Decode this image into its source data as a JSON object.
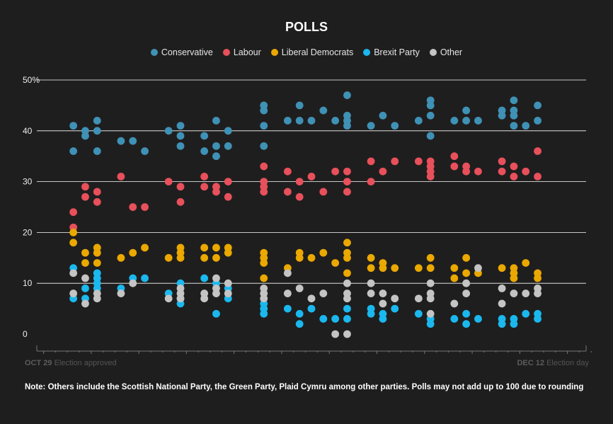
{
  "colors": {
    "conservative": "#3f91b5",
    "labour": "#e8505b",
    "libdem": "#eaa800",
    "brexit": "#1ab8ee",
    "other": "#c4c4c4",
    "grid": "#ffffff",
    "axis": "#777777"
  },
  "chart_data": {
    "type": "scatter",
    "title": "POLLS",
    "ylim": [
      0,
      50
    ],
    "yticks": [
      0,
      10,
      20,
      30,
      40,
      50
    ],
    "ytick_labels": [
      "0",
      "10",
      "20",
      "30",
      "40",
      "50%"
    ],
    "xrange_days": [
      0,
      44
    ],
    "xstart_label": {
      "date": "OCT 29",
      "text": "Election approved"
    },
    "xend_label": {
      "date": "DEC 12",
      "text": "Election day"
    },
    "series": [
      {
        "name": "Conservative",
        "key": "conservative",
        "points": [
          [
            2,
            41
          ],
          [
            2,
            36
          ],
          [
            3,
            40
          ],
          [
            3,
            39
          ],
          [
            4,
            42
          ],
          [
            4,
            40
          ],
          [
            4,
            36
          ],
          [
            6,
            38
          ],
          [
            7,
            38
          ],
          [
            8,
            36
          ],
          [
            10,
            40
          ],
          [
            11,
            41
          ],
          [
            11,
            39
          ],
          [
            11,
            37
          ],
          [
            13,
            39
          ],
          [
            13,
            36
          ],
          [
            14,
            42
          ],
          [
            14,
            37
          ],
          [
            14,
            35
          ],
          [
            15,
            40
          ],
          [
            15,
            37
          ],
          [
            18,
            45
          ],
          [
            18,
            44
          ],
          [
            18,
            41
          ],
          [
            18,
            37
          ],
          [
            20,
            42
          ],
          [
            21,
            45
          ],
          [
            21,
            42
          ],
          [
            22,
            42
          ],
          [
            23,
            44
          ],
          [
            24,
            42
          ],
          [
            25,
            47
          ],
          [
            25,
            43
          ],
          [
            25,
            42
          ],
          [
            25,
            41
          ],
          [
            27,
            41
          ],
          [
            28,
            43
          ],
          [
            29,
            41
          ],
          [
            31,
            42
          ],
          [
            32,
            46
          ],
          [
            32,
            45
          ],
          [
            32,
            43
          ],
          [
            32,
            39
          ],
          [
            34,
            42
          ],
          [
            35,
            44
          ],
          [
            35,
            42
          ],
          [
            36,
            42
          ],
          [
            38,
            44
          ],
          [
            38,
            43
          ],
          [
            39,
            46
          ],
          [
            39,
            44
          ],
          [
            39,
            43
          ],
          [
            39,
            41
          ],
          [
            40,
            41
          ],
          [
            41,
            45
          ],
          [
            41,
            42
          ]
        ]
      },
      {
        "name": "Labour",
        "key": "labour",
        "points": [
          [
            2,
            24
          ],
          [
            2,
            21
          ],
          [
            3,
            29
          ],
          [
            3,
            27
          ],
          [
            4,
            28
          ],
          [
            4,
            26
          ],
          [
            6,
            31
          ],
          [
            7,
            25
          ],
          [
            8,
            25
          ],
          [
            10,
            30
          ],
          [
            11,
            29
          ],
          [
            11,
            26
          ],
          [
            13,
            31
          ],
          [
            13,
            29
          ],
          [
            14,
            29
          ],
          [
            14,
            28
          ],
          [
            15,
            30
          ],
          [
            15,
            27
          ],
          [
            18,
            33
          ],
          [
            18,
            30
          ],
          [
            18,
            29
          ],
          [
            18,
            28
          ],
          [
            20,
            32
          ],
          [
            20,
            28
          ],
          [
            21,
            30
          ],
          [
            21,
            27
          ],
          [
            22,
            31
          ],
          [
            23,
            28
          ],
          [
            24,
            32
          ],
          [
            25,
            32
          ],
          [
            25,
            30
          ],
          [
            25,
            28
          ],
          [
            27,
            30
          ],
          [
            27,
            34
          ],
          [
            28,
            32
          ],
          [
            29,
            34
          ],
          [
            31,
            34
          ],
          [
            32,
            34
          ],
          [
            32,
            33
          ],
          [
            32,
            32
          ],
          [
            32,
            31
          ],
          [
            34,
            35
          ],
          [
            34,
            33
          ],
          [
            35,
            33
          ],
          [
            35,
            32
          ],
          [
            36,
            32
          ],
          [
            38,
            34
          ],
          [
            38,
            32
          ],
          [
            39,
            33
          ],
          [
            39,
            31
          ],
          [
            40,
            32
          ],
          [
            41,
            36
          ],
          [
            41,
            31
          ]
        ]
      },
      {
        "name": "Liberal Democrats",
        "key": "libdem",
        "points": [
          [
            2,
            20
          ],
          [
            2,
            18
          ],
          [
            3,
            16
          ],
          [
            3,
            14
          ],
          [
            4,
            17
          ],
          [
            4,
            16
          ],
          [
            4,
            14
          ],
          [
            6,
            15
          ],
          [
            7,
            16
          ],
          [
            8,
            17
          ],
          [
            10,
            15
          ],
          [
            11,
            17
          ],
          [
            11,
            16
          ],
          [
            11,
            15
          ],
          [
            13,
            17
          ],
          [
            13,
            15
          ],
          [
            14,
            17
          ],
          [
            14,
            15
          ],
          [
            15,
            17
          ],
          [
            15,
            16
          ],
          [
            18,
            16
          ],
          [
            18,
            15
          ],
          [
            18,
            14
          ],
          [
            18,
            11
          ],
          [
            20,
            13
          ],
          [
            21,
            16
          ],
          [
            21,
            15
          ],
          [
            22,
            15
          ],
          [
            23,
            16
          ],
          [
            24,
            14
          ],
          [
            25,
            18
          ],
          [
            25,
            16
          ],
          [
            25,
            15
          ],
          [
            25,
            12
          ],
          [
            27,
            15
          ],
          [
            27,
            13
          ],
          [
            28,
            14
          ],
          [
            28,
            13
          ],
          [
            29,
            13
          ],
          [
            31,
            13
          ],
          [
            32,
            15
          ],
          [
            32,
            13
          ],
          [
            34,
            13
          ],
          [
            34,
            11
          ],
          [
            35,
            15
          ],
          [
            35,
            12
          ],
          [
            36,
            12
          ],
          [
            38,
            13
          ],
          [
            39,
            13
          ],
          [
            39,
            12
          ],
          [
            39,
            11
          ],
          [
            40,
            14
          ],
          [
            41,
            12
          ],
          [
            41,
            11
          ]
        ]
      },
      {
        "name": "Brexit Party",
        "key": "brexit",
        "points": [
          [
            2,
            13
          ],
          [
            2,
            7
          ],
          [
            3,
            9
          ],
          [
            3,
            7
          ],
          [
            4,
            12
          ],
          [
            4,
            11
          ],
          [
            4,
            10
          ],
          [
            4,
            9
          ],
          [
            6,
            9
          ],
          [
            7,
            11
          ],
          [
            8,
            11
          ],
          [
            10,
            8
          ],
          [
            11,
            10
          ],
          [
            11,
            7
          ],
          [
            11,
            6
          ],
          [
            13,
            11
          ],
          [
            14,
            10
          ],
          [
            14,
            4
          ],
          [
            15,
            9
          ],
          [
            15,
            7
          ],
          [
            18,
            6
          ],
          [
            18,
            5
          ],
          [
            18,
            4
          ],
          [
            20,
            5
          ],
          [
            21,
            4
          ],
          [
            21,
            2
          ],
          [
            22,
            5
          ],
          [
            23,
            3
          ],
          [
            24,
            3
          ],
          [
            25,
            5
          ],
          [
            25,
            3
          ],
          [
            27,
            5
          ],
          [
            27,
            4
          ],
          [
            28,
            4
          ],
          [
            28,
            3
          ],
          [
            29,
            5
          ],
          [
            31,
            4
          ],
          [
            32,
            3
          ],
          [
            32,
            2
          ],
          [
            34,
            3
          ],
          [
            35,
            4
          ],
          [
            35,
            2
          ],
          [
            36,
            3
          ],
          [
            38,
            3
          ],
          [
            38,
            2
          ],
          [
            39,
            3
          ],
          [
            39,
            2
          ],
          [
            40,
            4
          ],
          [
            41,
            4
          ],
          [
            41,
            3
          ]
        ]
      },
      {
        "name": "Other",
        "key": "other",
        "points": [
          [
            2,
            12
          ],
          [
            2,
            8
          ],
          [
            3,
            11
          ],
          [
            3,
            6
          ],
          [
            4,
            8
          ],
          [
            4,
            7
          ],
          [
            6,
            8
          ],
          [
            7,
            10
          ],
          [
            10,
            7
          ],
          [
            11,
            9
          ],
          [
            11,
            8
          ],
          [
            11,
            7
          ],
          [
            13,
            8
          ],
          [
            13,
            7
          ],
          [
            14,
            11
          ],
          [
            14,
            9
          ],
          [
            14,
            8
          ],
          [
            15,
            10
          ],
          [
            15,
            8
          ],
          [
            18,
            9
          ],
          [
            18,
            8
          ],
          [
            18,
            7
          ],
          [
            20,
            12
          ],
          [
            20,
            8
          ],
          [
            21,
            9
          ],
          [
            22,
            7
          ],
          [
            23,
            8
          ],
          [
            24,
            0
          ],
          [
            25,
            10
          ],
          [
            25,
            8
          ],
          [
            25,
            7
          ],
          [
            25,
            0
          ],
          [
            27,
            10
          ],
          [
            27,
            8
          ],
          [
            28,
            8
          ],
          [
            28,
            6
          ],
          [
            29,
            7
          ],
          [
            31,
            7
          ],
          [
            32,
            10
          ],
          [
            32,
            8
          ],
          [
            32,
            7
          ],
          [
            32,
            4
          ],
          [
            34,
            6
          ],
          [
            35,
            10
          ],
          [
            35,
            8
          ],
          [
            36,
            13
          ],
          [
            38,
            9
          ],
          [
            38,
            6
          ],
          [
            39,
            8
          ],
          [
            40,
            8
          ],
          [
            41,
            9
          ],
          [
            41,
            8
          ]
        ]
      }
    ]
  },
  "legend": [
    {
      "label": "Conservative",
      "key": "conservative"
    },
    {
      "label": "Labour",
      "key": "labour"
    },
    {
      "label": "Liberal Democrats",
      "key": "libdem"
    },
    {
      "label": "Brexit Party",
      "key": "brexit"
    },
    {
      "label": "Other",
      "key": "other"
    }
  ],
  "note": "Note: Others include the Scottish National Party, the Green Party, Plaid Cymru among other parties. Polls may not add up to 100 due to rounding"
}
